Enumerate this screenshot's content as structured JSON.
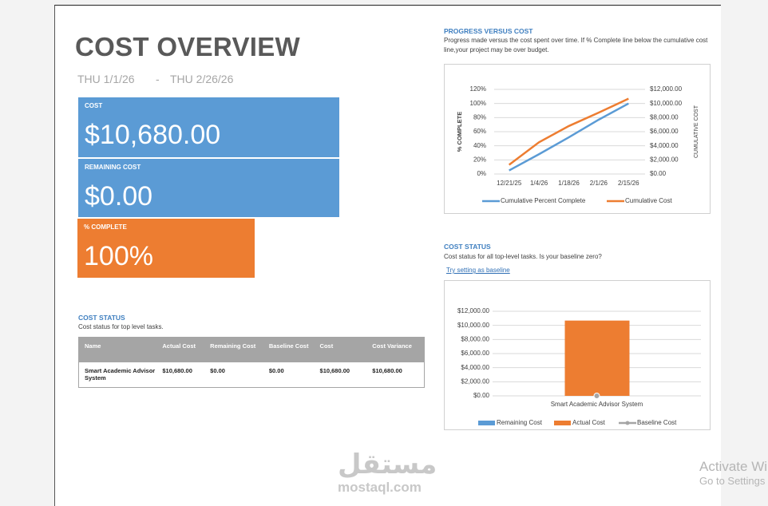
{
  "header": {
    "title": "COST OVERVIEW",
    "start": "THU 1/1/26",
    "separator": "-",
    "finish": "THU 2/26/26"
  },
  "tiles": [
    {
      "label": "COST",
      "value": "$10,680.00",
      "color": "#5b9bd5"
    },
    {
      "label": "REMAINING COST",
      "value": "$0.00",
      "color": "#5b9bd5"
    },
    {
      "label": "% COMPLETE",
      "value": "100%",
      "color": "#ed7d31"
    }
  ],
  "cost_table": {
    "title": "COST STATUS",
    "subtitle": "Cost status for top level tasks.",
    "columns": [
      "Name",
      "Actual Cost",
      "Remaining Cost",
      "Baseline Cost",
      "Cost",
      "Cost Variance"
    ],
    "rows": [
      [
        "Smart Academic Advisor System",
        "$10,680.00",
        "$0.00",
        "$0.00",
        "$10,680.00",
        "$10,680.00"
      ]
    ]
  },
  "progress": {
    "title": "PROGRESS VERSUS COST",
    "description": "Progress made versus the cost spent over time. If % Complete line below the cumulative cost line,your project may be over budget.",
    "chart_data": {
      "type": "line",
      "categories": [
        "12/21/25",
        "1/4/26",
        "1/18/26",
        "2/1/26",
        "2/15/26"
      ],
      "ylabel": "% COMPLETE",
      "y2label": "CUMULATIVE COST",
      "ylim": [
        0,
        120
      ],
      "yticks": [
        {
          "value": 0,
          "label": "0%"
        },
        {
          "value": 20,
          "label": "20%"
        },
        {
          "value": 40,
          "label": "40%"
        },
        {
          "value": 60,
          "label": "60%"
        },
        {
          "value": 80,
          "label": "80%"
        },
        {
          "value": 100,
          "label": "100%"
        },
        {
          "value": 120,
          "label": "120%"
        }
      ],
      "y2lim": [
        0,
        12000
      ],
      "y2ticks": [
        {
          "value": 0,
          "label": "$0.00"
        },
        {
          "value": 2000,
          "label": "$2,000.00"
        },
        {
          "value": 4000,
          "label": "$4,000.00"
        },
        {
          "value": 6000,
          "label": "$6,000.00"
        },
        {
          "value": 8000,
          "label": "$8,000.00"
        },
        {
          "value": 10000,
          "label": "$10,000.00"
        },
        {
          "value": 12000,
          "label": "$12,000.00"
        }
      ],
      "grid": true,
      "series": [
        {
          "name": "Cumulative Percent Complete",
          "color": "#5b9bd5",
          "values": [
            5,
            28,
            52,
            77,
            100
          ]
        },
        {
          "name": "Cumulative Cost",
          "color": "#ed7d31",
          "axis": "y2",
          "values": [
            1300,
            4500,
            6800,
            8700,
            10680
          ]
        }
      ]
    }
  },
  "status": {
    "title": "COST STATUS",
    "description": "Cost status for all top-level tasks. Is your baseline zero?",
    "link": "Try setting as baseline",
    "chart_data": {
      "type": "bar",
      "categories": [
        "Smart Academic Advisor System"
      ],
      "ylim": [
        0,
        12000
      ],
      "yticks": [
        {
          "value": 0,
          "label": "$0.00"
        },
        {
          "value": 2000,
          "label": "$2,000.00"
        },
        {
          "value": 4000,
          "label": "$4,000.00"
        },
        {
          "value": 6000,
          "label": "$6,000.00"
        },
        {
          "value": 8000,
          "label": "$8,000.00"
        },
        {
          "value": 10000,
          "label": "$10,000.00"
        },
        {
          "value": 12000,
          "label": "$12,000.00"
        }
      ],
      "grid": true,
      "series": [
        {
          "name": "Remaining Cost",
          "color": "#5b9bd5",
          "values": [
            0
          ]
        },
        {
          "name": "Actual Cost",
          "color": "#ed7d31",
          "values": [
            10680
          ]
        },
        {
          "name": "Baseline Cost",
          "color": "#a5a5a5",
          "values": [
            0
          ]
        }
      ]
    }
  },
  "watermark": {
    "logo": "مستقل",
    "site": "mostaql.com",
    "activate": "Activate Windows",
    "settings": "Go to Settings to activate Windows."
  }
}
